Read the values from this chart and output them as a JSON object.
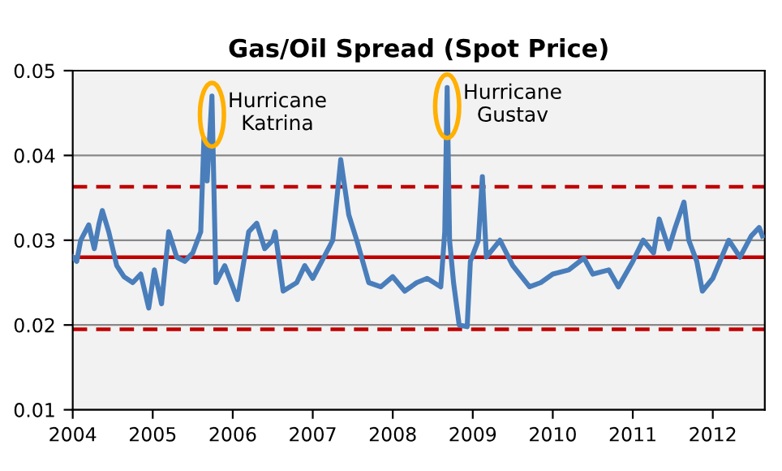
{
  "chart_data": {
    "type": "line",
    "title": "Gas/Oil Spread (Spot Price)",
    "x": [
      2004.0,
      2004.05,
      2004.1,
      2004.2,
      2004.27,
      2004.33,
      2004.37,
      2004.45,
      2004.55,
      2004.64,
      2004.75,
      2004.85,
      2004.95,
      2005.02,
      2005.11,
      2005.2,
      2005.3,
      2005.4,
      2005.5,
      2005.6,
      2005.64,
      2005.68,
      2005.74,
      2005.79,
      2005.9,
      2006.06,
      2006.2,
      2006.3,
      2006.4,
      2006.5,
      2006.53,
      2006.63,
      2006.8,
      2006.9,
      2007.0,
      2007.14,
      2007.25,
      2007.35,
      2007.45,
      2007.55,
      2007.7,
      2007.85,
      2008.0,
      2008.15,
      2008.3,
      2008.43,
      2008.6,
      2008.65,
      2008.68,
      2008.71,
      2008.76,
      2008.83,
      2008.93,
      2008.97,
      2009.07,
      2009.12,
      2009.17,
      2009.34,
      2009.5,
      2009.71,
      2009.85,
      2010.0,
      2010.2,
      2010.39,
      2010.5,
      2010.7,
      2010.82,
      2011.0,
      2011.13,
      2011.26,
      2011.33,
      2011.45,
      2011.53,
      2011.64,
      2011.7,
      2011.8,
      2011.87,
      2012.0,
      2012.2,
      2012.34,
      2012.48,
      2012.58,
      2012.62
    ],
    "series": [
      {
        "color": "#4a7ebb",
        "values": [
          0.028,
          0.0275,
          0.03,
          0.0318,
          0.029,
          0.032,
          0.0335,
          0.031,
          0.027,
          0.0257,
          0.025,
          0.026,
          0.022,
          0.0265,
          0.0225,
          0.031,
          0.028,
          0.0275,
          0.0285,
          0.031,
          0.042,
          0.037,
          0.047,
          0.025,
          0.027,
          0.023,
          0.031,
          0.032,
          0.029,
          0.03,
          0.031,
          0.024,
          0.025,
          0.027,
          0.0255,
          0.028,
          0.03,
          0.0395,
          0.033,
          0.03,
          0.025,
          0.0245,
          0.0257,
          0.024,
          0.025,
          0.0255,
          0.0245,
          0.031,
          0.048,
          0.03,
          0.025,
          0.02,
          0.0198,
          0.0275,
          0.03,
          0.0375,
          0.028,
          0.03,
          0.027,
          0.0245,
          0.025,
          0.026,
          0.0265,
          0.0279,
          0.026,
          0.0265,
          0.0245,
          0.0275,
          0.03,
          0.0285,
          0.0325,
          0.029,
          0.0315,
          0.0345,
          0.03,
          0.0275,
          0.024,
          0.0255,
          0.03,
          0.028,
          0.0305,
          0.0315,
          0.0305
        ]
      }
    ],
    "xlim": [
      2004,
      2012.65
    ],
    "xticks": [
      2004,
      2005,
      2006,
      2007,
      2008,
      2009,
      2010,
      2011,
      2012
    ],
    "ylim": [
      0.01,
      0.05
    ],
    "yticks": [
      0.01,
      0.02,
      0.03,
      0.04,
      0.05
    ],
    "grid": "y",
    "legend": false,
    "marker": "none",
    "line_style": "solid",
    "ref_lines": [
      {
        "axis": "y",
        "value": 0.028,
        "color": "#c00000",
        "line_style": "solid"
      },
      {
        "axis": "y",
        "value": 0.0363,
        "color": "#c00000",
        "line_style": "dashed"
      },
      {
        "axis": "y",
        "value": 0.0195,
        "color": "#c00000",
        "line_style": "dashed"
      }
    ],
    "annotations": [
      {
        "text": "Hurricane\nKatrina",
        "x": 2005.74,
        "y": 0.047
      },
      {
        "text": "Hurricane\nGustav",
        "x": 2008.68,
        "y": 0.048
      }
    ]
  }
}
